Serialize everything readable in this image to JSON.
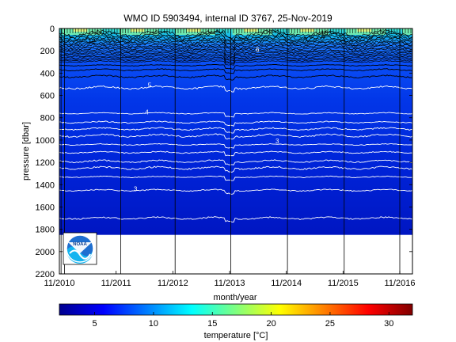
{
  "chart_data": {
    "type": "heatmap",
    "title": "WMO ID 5903494, internal ID 3767, 25-Nov-2019",
    "xlabel": "month/year",
    "ylabel": "pressure [dbar]",
    "x_ticks": [
      "11/2010",
      "11/2011",
      "11/2012",
      "11/2013",
      "11/2014",
      "11/2015",
      "11/2016"
    ],
    "y_ticks": [
      0,
      200,
      400,
      600,
      800,
      1000,
      1200,
      1400,
      1600,
      1800,
      2000,
      2200
    ],
    "ylim": [
      2200,
      0
    ],
    "data_max_pressure": 1850,
    "colorbar": {
      "label": "temperature [°C]",
      "ticks": [
        5,
        10,
        15,
        20,
        25,
        30
      ],
      "range": [
        2,
        32
      ],
      "colormap": "jet"
    },
    "isotherm_labels": [
      {
        "text": "12",
        "time": 2011.35,
        "pressure": 130
      },
      {
        "text": "16",
        "time": 2015.45,
        "pressure": 60
      },
      {
        "text": "6",
        "time": 2014.3,
        "pressure": 210
      },
      {
        "text": "5",
        "time": 2012.4,
        "pressure": 530
      },
      {
        "text": "4",
        "time": 2012.35,
        "pressure": 770
      },
      {
        "text": "3",
        "time": 2014.65,
        "pressure": 1030
      },
      {
        "text": "3",
        "time": 2012.15,
        "pressure": 1460
      }
    ],
    "profile_times": [
      2010.87,
      2010.93,
      2011.92,
      2012.88,
      2013.86,
      2014.86,
      2015.86,
      2016.84
    ],
    "legend": "none",
    "grid": false,
    "logo": "NOAA"
  }
}
